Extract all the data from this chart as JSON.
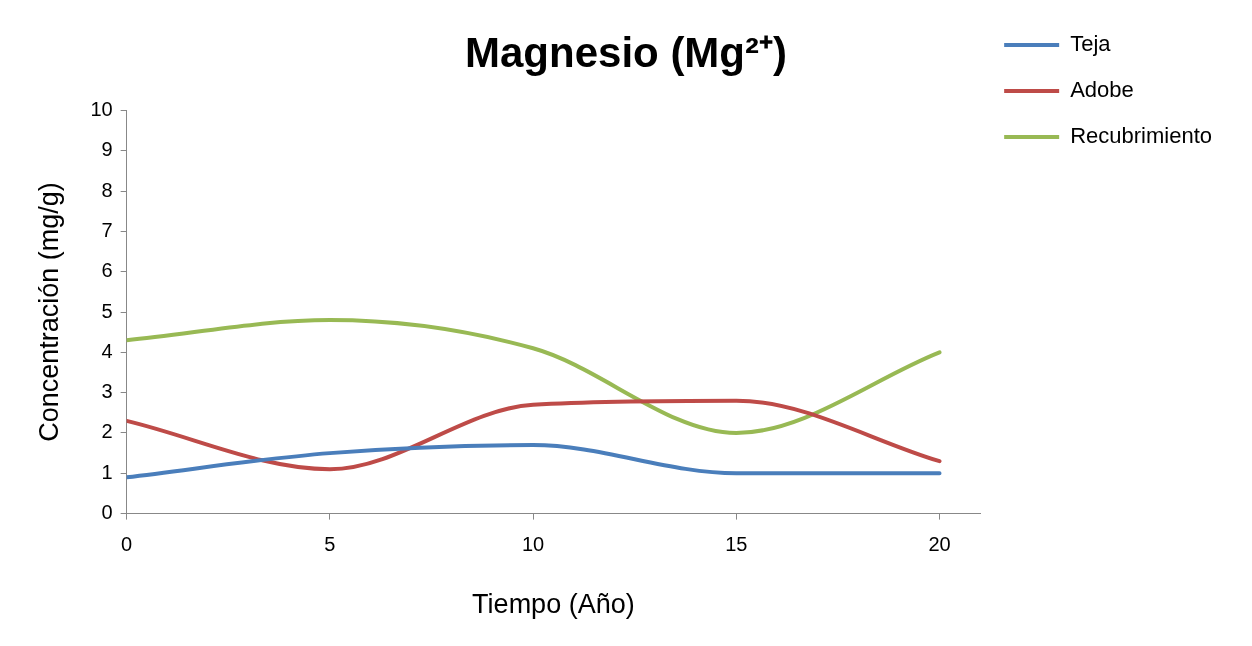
{
  "chart_data": {
    "type": "line",
    "title": "Magnesio (Mg²⁺)",
    "xlabel": "Tiempo (Año)",
    "ylabel": "Concentración (mg/g)",
    "x": [
      0,
      5,
      10,
      15,
      20
    ],
    "series": [
      {
        "name": "Teja",
        "color": "#4a7ebb",
        "values": [
          0.9,
          1.5,
          1.7,
          1.0,
          1.0
        ]
      },
      {
        "name": "Adobe",
        "color": "#be4b48",
        "values": [
          2.3,
          1.1,
          2.7,
          2.8,
          1.3
        ]
      },
      {
        "name": "Recubrimiento",
        "color": "#98b954",
        "values": [
          4.3,
          4.8,
          4.1,
          2.0,
          4.0
        ]
      }
    ],
    "xlim": [
      0,
      21
    ],
    "xticks": [
      0,
      5,
      10,
      15,
      20
    ],
    "ylim": [
      0,
      10
    ],
    "yticks": [
      0,
      1,
      2,
      3,
      4,
      5,
      6,
      7,
      8,
      9,
      10
    ],
    "legend": "right",
    "marker": "none",
    "line_style": "solid"
  }
}
